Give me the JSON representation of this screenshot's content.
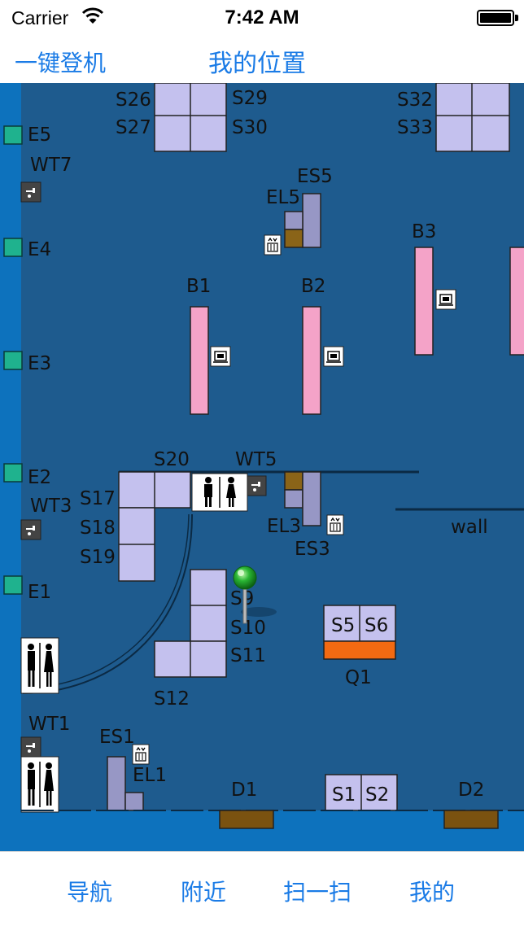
{
  "status_bar": {
    "carrier": "Carrier",
    "time": "7:42 AM"
  },
  "nav": {
    "left_button": "一键登机",
    "title": "我的位置"
  },
  "map": {
    "labels": {
      "s26": "S26",
      "s27": "S27",
      "s29": "S29",
      "s30": "S30",
      "s32": "S32",
      "s33": "S33",
      "e5": "E5",
      "e4": "E4",
      "e3": "E3",
      "e2": "E2",
      "e1": "E1",
      "wt7": "WT7",
      "wt5": "WT5",
      "wt3": "WT3",
      "wt1": "WT1",
      "es5": "ES5",
      "el5": "EL5",
      "es3": "ES3",
      "el3": "EL3",
      "es1": "ES1",
      "el1": "EL1",
      "b1": "B1",
      "b2": "B2",
      "b3": "B3",
      "s20": "S20",
      "s17": "S17",
      "s18": "S18",
      "s19": "S19",
      "s9": "S9",
      "s10": "S10",
      "s11": "S11",
      "s12": "S12",
      "s5": "S5",
      "s6": "S6",
      "q1": "Q1",
      "s1": "S1",
      "s2": "S2",
      "d1": "D1",
      "d2": "D2",
      "wall": "wall"
    },
    "colors": {
      "floor": "#1e5b8e",
      "border": "#0d72bd",
      "shop": "#c4c1ee",
      "belt": "#f4a3c8",
      "stair": "#9797c5",
      "elevator_slot": "#8a6418",
      "counter": "#f36a12",
      "door": "#7a5210",
      "exit": "#1fb28e",
      "pin": "#29b533"
    },
    "icons": {
      "restroom": "restroom-icon",
      "water": "water-tap-icon",
      "elevator": "elevator-icon",
      "baggage": "baggage-icon",
      "pin": "location-pin-icon"
    }
  },
  "tabs": [
    {
      "label": "导航"
    },
    {
      "label": "附近"
    },
    {
      "label": "扫一扫"
    },
    {
      "label": "我的"
    }
  ]
}
